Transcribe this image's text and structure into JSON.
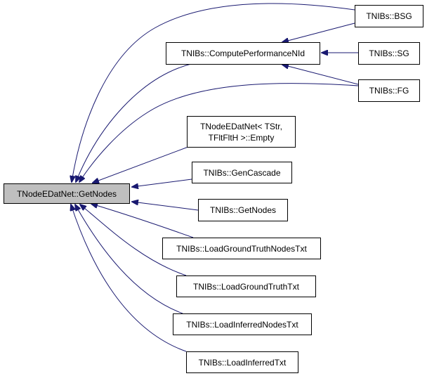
{
  "graph": {
    "edge_color": "#191970",
    "focus_fill": "#bfbfbf",
    "nodes": {
      "main": "TNodeEDatNet::GetNodes",
      "bsg": "TNIBs::BSG",
      "compute": "TNIBs::ComputePerformanceNId",
      "sg": "TNIBs::SG",
      "fg": "TNIBs::FG",
      "empty_line1": "TNodeEDatNet< TStr,",
      "empty_line2": "TFltFltH >::Empty",
      "gencascade": "TNIBs::GenCascade",
      "getnodes": "TNIBs::GetNodes",
      "lgtnodes": "TNIBs::LoadGroundTruthNodesTxt",
      "lgt": "TNIBs::LoadGroundTruthTxt",
      "linodes": "TNIBs::LoadInferredNodesTxt",
      "li": "TNIBs::LoadInferredTxt"
    },
    "edges": [
      [
        "TNIBs::BSG",
        "TNodeEDatNet::GetNodes"
      ],
      [
        "TNIBs::ComputePerformanceNId",
        "TNodeEDatNet::GetNodes"
      ],
      [
        "TNIBs::FG",
        "TNodeEDatNet::GetNodes"
      ],
      [
        "TNodeEDatNet< TStr, TFltFltH >::Empty",
        "TNodeEDatNet::GetNodes"
      ],
      [
        "TNIBs::GenCascade",
        "TNodeEDatNet::GetNodes"
      ],
      [
        "TNIBs::GetNodes",
        "TNodeEDatNet::GetNodes"
      ],
      [
        "TNIBs::LoadGroundTruthNodesTxt",
        "TNodeEDatNet::GetNodes"
      ],
      [
        "TNIBs::LoadGroundTruthTxt",
        "TNodeEDatNet::GetNodes"
      ],
      [
        "TNIBs::LoadInferredNodesTxt",
        "TNodeEDatNet::GetNodes"
      ],
      [
        "TNIBs::LoadInferredTxt",
        "TNodeEDatNet::GetNodes"
      ],
      [
        "TNIBs::BSG",
        "TNIBs::ComputePerformanceNId"
      ],
      [
        "TNIBs::SG",
        "TNIBs::ComputePerformanceNId"
      ],
      [
        "TNIBs::FG",
        "TNIBs::ComputePerformanceNId"
      ]
    ]
  }
}
